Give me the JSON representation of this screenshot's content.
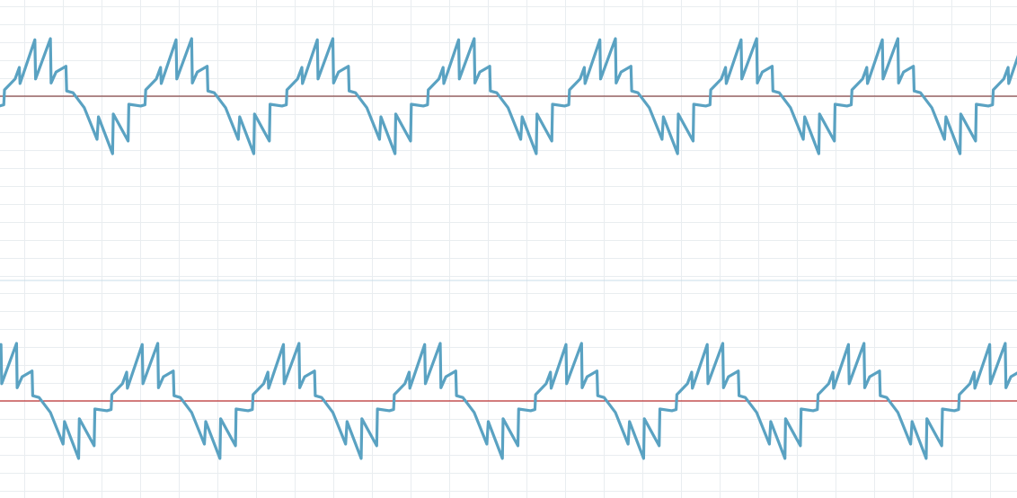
{
  "chart_data": {
    "type": "line",
    "title": "",
    "xlabel": "",
    "ylabel": "",
    "grid": true,
    "colors": {
      "trace": "#5aa2c2",
      "grid": "#e9edf0",
      "separator": "#c9dce8",
      "baseline_top": "#6b1a1a",
      "baseline_bottom": "#b00000"
    },
    "panels": [
      {
        "name": "",
        "phase_shift_periods": 0.0
      },
      {
        "name": "",
        "phase_shift_periods": 0.76
      }
    ],
    "periods_visible": 7.2,
    "waveform_one_period": {
      "phase": [
        0,
        0.03,
        0.035,
        0.11,
        0.14,
        0.145,
        0.25,
        0.255,
        0.36,
        0.365,
        0.4,
        0.47,
        0.475,
        0.52,
        0.6,
        0.69,
        0.7,
        0.8,
        0.805,
        0.91,
        0.915,
        1.0
      ],
      "amplitude": [
        -0.17,
        -0.15,
        0.11,
        0.3,
        0.5,
        0.22,
        0.98,
        0.3,
        1.0,
        0.23,
        0.42,
        0.52,
        0.09,
        0.06,
        -0.2,
        -0.75,
        -0.36,
        -1.0,
        -0.31,
        -0.78,
        -0.14,
        -0.17
      ]
    }
  }
}
